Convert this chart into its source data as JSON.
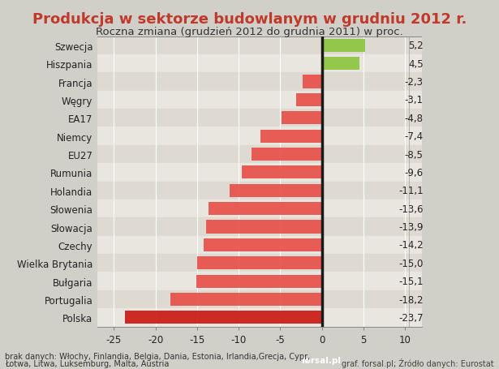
{
  "title": "Produkcja w sektorze budowlanym w grudniu 2012 r.",
  "subtitle": "Roczna zmiana (grudzień 2012 do grudnia 2011) w proc.",
  "categories": [
    "Szwecja",
    "Hiszpania",
    "Francja",
    "Węgry",
    "EA17",
    "Niemcy",
    "EU27",
    "Rumunia",
    "Holandia",
    "Słowenia",
    "Słowacja",
    "Czechy",
    "Wielka Brytania",
    "Bułgaria",
    "Portugalia",
    "Polska"
  ],
  "values": [
    5.2,
    4.5,
    -2.3,
    -3.1,
    -4.8,
    -7.4,
    -8.5,
    -9.6,
    -11.1,
    -13.6,
    -13.9,
    -14.2,
    -15.0,
    -15.1,
    -18.2,
    -23.7
  ],
  "bar_colors": [
    "#8dc63f",
    "#8dc63f",
    "#e8504a",
    "#e8504a",
    "#e8504a",
    "#e8504a",
    "#e8504a",
    "#e8504a",
    "#e8504a",
    "#e8504a",
    "#e8504a",
    "#e8504a",
    "#e8504a",
    "#e8504a",
    "#e8504a",
    "#cc1a14"
  ],
  "value_labels": [
    "5,2",
    "4,5",
    "-2,3",
    "-3,1",
    "-4,8",
    "-7,4",
    "-8,5",
    "-9,6",
    "-11,1",
    "-13,6",
    "-13,9",
    "-14,2",
    "-15,0",
    "-15,1",
    "-18,2",
    "-23,7"
  ],
  "xlim": [
    -27,
    12
  ],
  "xticks": [
    -25,
    -20,
    -15,
    -10,
    -5,
    0,
    5,
    10
  ],
  "title_color": "#c0392b",
  "title_fontsize": 13,
  "subtitle_fontsize": 9.5,
  "label_fontsize": 8.5,
  "value_fontsize": 8.5,
  "footnote_line1": "brak danych: Włochy, Finlandia, Belgia, Dania, Estonia, Irlandia,Grecja, Cypr,",
  "footnote_line2": "Łotwa, Litwa, Luksemburg, Malta, Austria",
  "bg_color": "#d0cfc8",
  "plot_bg_color": "#e8e6df",
  "grid_color": "#ffffff",
  "bar_height": 0.72,
  "zero_line_color": "#1a1a1a",
  "row_alt_color1": "#dedad2",
  "row_alt_color2": "#e8e6df"
}
